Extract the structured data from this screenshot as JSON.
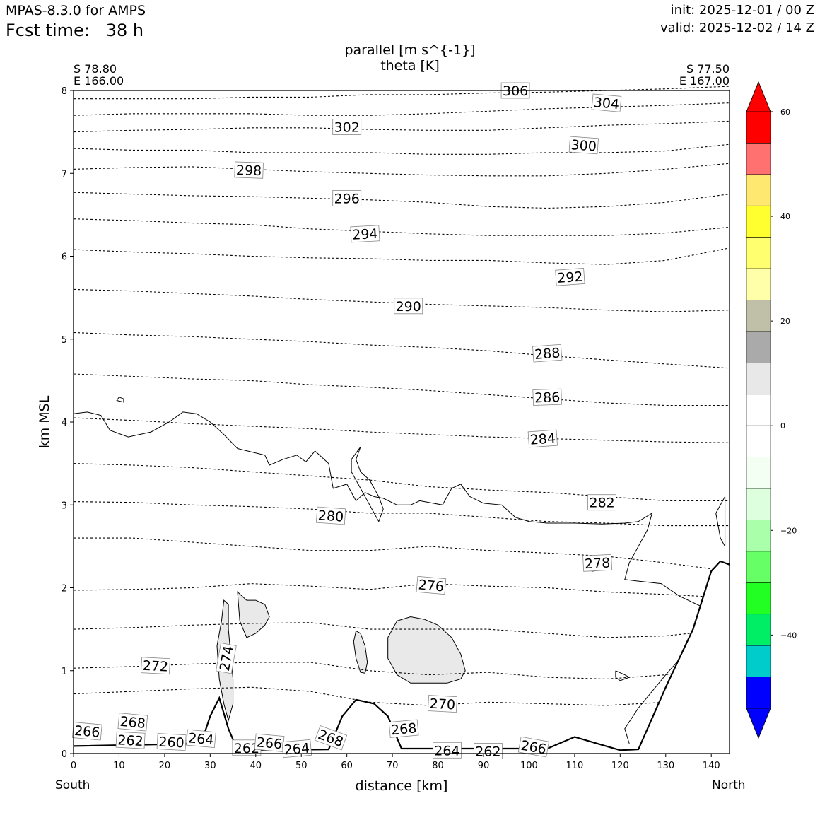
{
  "header": {
    "model": "MPAS-8.3.0 for AMPS",
    "fcst_label": "Fcst time:",
    "fcst_value": "38 h",
    "init": "init: 2025-12-01 / 00 Z",
    "valid": "valid: 2025-12-02 / 14 Z"
  },
  "endpoints": {
    "left_lat": "S 78.80",
    "left_lon": "E 166.00",
    "right_lat": "S 77.50",
    "right_lon": "E 167.00",
    "left_dir": "South",
    "right_dir": "North"
  },
  "chart_data": {
    "type": "cross-section",
    "title": "parallel [m s^{-1}]",
    "subtitle": "theta [K]",
    "xlabel": "distance [km]",
    "ylabel": "km MSL",
    "xlim": [
      0,
      144
    ],
    "ylim": [
      0,
      8
    ],
    "xticks": [
      0,
      10,
      20,
      30,
      40,
      50,
      60,
      70,
      80,
      90,
      100,
      110,
      120,
      130,
      140
    ],
    "yticks": [
      0,
      1,
      2,
      3,
      4,
      5,
      6,
      7,
      8
    ],
    "grid": false,
    "terrain": [
      [
        0,
        0.09
      ],
      [
        28,
        0.12
      ],
      [
        30,
        0.45
      ],
      [
        32,
        0.67
      ],
      [
        34,
        0.3
      ],
      [
        36,
        0.04
      ],
      [
        56,
        0.05
      ],
      [
        59,
        0.45
      ],
      [
        62,
        0.65
      ],
      [
        66,
        0.6
      ],
      [
        69,
        0.45
      ],
      [
        72,
        0.06
      ],
      [
        104,
        0.06
      ],
      [
        110,
        0.2
      ],
      [
        115,
        0.12
      ],
      [
        120,
        0.04
      ],
      [
        124,
        0.05
      ],
      [
        130,
        0.8
      ],
      [
        136,
        1.5
      ],
      [
        140,
        2.2
      ],
      [
        142,
        2.32
      ],
      [
        144,
        2.28
      ]
    ],
    "theta_contours": {
      "style": "dashed",
      "series": [
        {
          "level": 270,
          "y": [
            0.72,
            0.75,
            0.78,
            0.8,
            0.75,
            0.62,
            0.58,
            0.62,
            0.6,
            0.58,
            0.62,
            0.7
          ]
        },
        {
          "level": 272,
          "y": [
            1.03,
            1.05,
            1.08,
            1.1,
            1.1,
            1.0,
            0.95,
            0.98,
            0.92,
            0.9,
            0.95,
            1.1
          ]
        },
        {
          "level": 274,
          "y": [
            1.5,
            1.52,
            1.55,
            1.57,
            1.58,
            1.5,
            1.5,
            1.5,
            1.45,
            1.4,
            1.42,
            1.5
          ]
        },
        {
          "level": 276,
          "y": [
            1.97,
            1.98,
            2.0,
            2.05,
            2.02,
            1.98,
            2.05,
            2.02,
            2.0,
            1.95,
            1.92,
            1.88
          ]
        },
        {
          "level": 278,
          "y": [
            2.6,
            2.6,
            2.55,
            2.5,
            2.45,
            2.45,
            2.5,
            2.45,
            2.42,
            2.38,
            2.3,
            2.2
          ]
        },
        {
          "level": 280,
          "y": [
            3.04,
            3.03,
            3.0,
            2.98,
            2.95,
            2.9,
            2.9,
            2.85,
            2.8,
            2.78,
            2.75,
            2.75
          ]
        },
        {
          "level": 282,
          "y": [
            3.5,
            3.48,
            3.45,
            3.4,
            3.35,
            3.3,
            3.22,
            3.18,
            3.15,
            3.1,
            3.05,
            3.05
          ]
        },
        {
          "level": 284,
          "y": [
            4.05,
            4.02,
            3.98,
            3.95,
            3.92,
            3.88,
            3.85,
            3.82,
            3.8,
            3.78,
            3.76,
            3.75
          ]
        },
        {
          "level": 286,
          "y": [
            4.58,
            4.55,
            4.52,
            4.5,
            4.45,
            4.42,
            4.38,
            4.33,
            4.28,
            4.23,
            4.2,
            4.2
          ]
        },
        {
          "level": 288,
          "y": [
            5.08,
            5.05,
            5.03,
            5.0,
            4.97,
            4.93,
            4.9,
            4.86,
            4.8,
            4.75,
            4.7,
            4.65
          ]
        },
        {
          "level": 290,
          "y": [
            5.6,
            5.58,
            5.55,
            5.52,
            5.48,
            5.45,
            5.42,
            5.4,
            5.38,
            5.35,
            5.33,
            5.35
          ]
        },
        {
          "level": 292,
          "y": [
            6.08,
            6.05,
            6.03,
            6.0,
            5.98,
            5.97,
            5.95,
            5.95,
            5.92,
            5.9,
            5.95,
            6.1
          ]
        },
        {
          "level": 294,
          "y": [
            6.45,
            6.43,
            6.4,
            6.38,
            6.33,
            6.3,
            6.27,
            6.25,
            6.25,
            6.25,
            6.28,
            6.35
          ]
        },
        {
          "level": 296,
          "y": [
            6.77,
            6.75,
            6.73,
            6.72,
            6.7,
            6.68,
            6.65,
            6.6,
            6.58,
            6.6,
            6.65,
            6.75
          ]
        },
        {
          "level": 298,
          "y": [
            7.05,
            7.07,
            7.08,
            7.05,
            7.02,
            7.0,
            6.98,
            6.97,
            6.97,
            7.0,
            7.05,
            7.12
          ]
        },
        {
          "level": 300,
          "y": [
            7.3,
            7.28,
            7.28,
            7.25,
            7.25,
            7.25,
            7.23,
            7.23,
            7.25,
            7.25,
            7.27,
            7.35
          ]
        },
        {
          "level": 302,
          "y": [
            7.5,
            7.52,
            7.53,
            7.55,
            7.55,
            7.53,
            7.52,
            7.52,
            7.55,
            7.58,
            7.6,
            7.63
          ]
        },
        {
          "level": 304,
          "y": [
            7.7,
            7.72,
            7.72,
            7.72,
            7.7,
            7.7,
            7.72,
            7.75,
            7.78,
            7.8,
            7.82,
            7.85
          ]
        },
        {
          "level": 306,
          "y": [
            7.9,
            7.9,
            7.9,
            7.92,
            7.92,
            7.95,
            7.95,
            7.97,
            7.98,
            8.0,
            8.02,
            8.05
          ]
        }
      ],
      "x": [
        0,
        13,
        26,
        39,
        52,
        65,
        78,
        91,
        104,
        117,
        130,
        144
      ],
      "labels": [
        {
          "text": "266",
          "x": 3,
          "y": 0.27,
          "rot": -5
        },
        {
          "text": "268",
          "x": 13,
          "y": 0.38,
          "rot": -5
        },
        {
          "text": "262",
          "x": 12.5,
          "y": 0.16,
          "rot": -3
        },
        {
          "text": "260",
          "x": 21.5,
          "y": 0.14,
          "rot": -3
        },
        {
          "text": "264",
          "x": 28,
          "y": 0.18,
          "rot": -5
        },
        {
          "text": "272",
          "x": 18,
          "y": 1.06,
          "rot": -3
        },
        {
          "text": "274",
          "x": 33.5,
          "y": 1.15,
          "rot": 80
        },
        {
          "text": "262",
          "x": 38,
          "y": 0.07,
          "rot": 0
        },
        {
          "text": "266",
          "x": 43,
          "y": 0.13,
          "rot": -5
        },
        {
          "text": "264",
          "x": 49,
          "y": 0.06,
          "rot": 5
        },
        {
          "text": "268",
          "x": 56.5,
          "y": 0.19,
          "rot": -20
        },
        {
          "text": "268",
          "x": 72.5,
          "y": 0.3,
          "rot": 5
        },
        {
          "text": "270",
          "x": 81,
          "y": 0.6,
          "rot": -3
        },
        {
          "text": "264",
          "x": 82,
          "y": 0.04,
          "rot": 0
        },
        {
          "text": "262",
          "x": 91,
          "y": 0.03,
          "rot": 0
        },
        {
          "text": "266",
          "x": 101,
          "y": 0.08,
          "rot": -10
        },
        {
          "text": "276",
          "x": 78.5,
          "y": 2.03,
          "rot": -5
        },
        {
          "text": "278",
          "x": 115,
          "y": 2.3,
          "rot": 3
        },
        {
          "text": "280",
          "x": 56.5,
          "y": 2.87,
          "rot": -4
        },
        {
          "text": "282",
          "x": 116,
          "y": 3.03,
          "rot": 0
        },
        {
          "text": "284",
          "x": 103,
          "y": 3.8,
          "rot": 4
        },
        {
          "text": "286",
          "x": 104,
          "y": 4.3,
          "rot": 2
        },
        {
          "text": "288",
          "x": 104,
          "y": 4.83,
          "rot": 4
        },
        {
          "text": "290",
          "x": 73.5,
          "y": 5.4,
          "rot": 0
        },
        {
          "text": "292",
          "x": 109,
          "y": 5.75,
          "rot": 4
        },
        {
          "text": "294",
          "x": 64,
          "y": 6.27,
          "rot": 3
        },
        {
          "text": "296",
          "x": 60,
          "y": 6.7,
          "rot": 0
        },
        {
          "text": "298",
          "x": 38.5,
          "y": 7.04,
          "rot": -2
        },
        {
          "text": "300",
          "x": 112,
          "y": 7.34,
          "rot": -4
        },
        {
          "text": "302",
          "x": 60,
          "y": 7.56,
          "rot": 0
        },
        {
          "text": "304",
          "x": 117,
          "y": 7.85,
          "rot": -5
        },
        {
          "text": "306",
          "x": 97,
          "y": 8.0,
          "rot": 0
        }
      ]
    },
    "parallel_wind_zero_contour": {
      "style": "solid",
      "path": [
        [
          0,
          4.1
        ],
        [
          3,
          4.12
        ],
        [
          6,
          4.08
        ],
        [
          8,
          3.9
        ],
        [
          12,
          3.82
        ],
        [
          17,
          3.88
        ],
        [
          21,
          4.0
        ],
        [
          24,
          4.12
        ],
        [
          27,
          4.1
        ],
        [
          30,
          4.0
        ],
        [
          33,
          3.85
        ],
        [
          36,
          3.68
        ],
        [
          42,
          3.6
        ],
        [
          43,
          3.48
        ],
        [
          46,
          3.55
        ],
        [
          49,
          3.6
        ],
        [
          51,
          3.52
        ],
        [
          53,
          3.65
        ],
        [
          56,
          3.5
        ],
        [
          57,
          3.2
        ],
        [
          60,
          3.25
        ],
        [
          62,
          3.05
        ],
        [
          64,
          3.15
        ],
        [
          66,
          3.1
        ],
        [
          68,
          3.08
        ],
        [
          71,
          3.0
        ],
        [
          74,
          3.0
        ],
        [
          76,
          3.05
        ],
        [
          81,
          3.0
        ],
        [
          83,
          3.2
        ],
        [
          85,
          3.25
        ],
        [
          87,
          3.1
        ],
        [
          90,
          3.02
        ],
        [
          94,
          3.0
        ],
        [
          97,
          2.85
        ],
        [
          100,
          2.8
        ],
        [
          104,
          2.78
        ],
        [
          110,
          2.78
        ],
        [
          116,
          2.77
        ],
        [
          121,
          2.78
        ],
        [
          124,
          2.8
        ],
        [
          127,
          2.9
        ],
        [
          126,
          2.7
        ],
        [
          122,
          2.3
        ],
        [
          121,
          2.1
        ],
        [
          124,
          2.08
        ],
        [
          129,
          2.05
        ],
        [
          133,
          1.9
        ],
        [
          138,
          1.77
        ],
        [
          141,
          1.8
        ]
      ],
      "path2": [
        [
          63,
          3.7
        ],
        [
          62,
          3.55
        ],
        [
          63,
          3.4
        ],
        [
          65,
          3.3
        ],
        [
          67,
          3.1
        ],
        [
          68,
          2.95
        ],
        [
          67,
          2.8
        ],
        [
          66,
          2.9
        ],
        [
          65,
          3.0
        ],
        [
          64,
          3.1
        ],
        [
          63,
          3.2
        ],
        [
          61,
          3.4
        ],
        [
          61,
          3.55
        ],
        [
          63,
          3.7
        ]
      ],
      "path3": [
        [
          10,
          4.3
        ],
        [
          11,
          4.28
        ],
        [
          11,
          4.24
        ],
        [
          9.5,
          4.26
        ],
        [
          10,
          4.3
        ]
      ],
      "path4": [
        [
          112,
          2.22
        ],
        [
          113,
          2.25
        ],
        [
          115,
          2.25
        ],
        [
          116,
          2.22
        ],
        [
          114,
          2.2
        ],
        [
          112,
          2.22
        ]
      ],
      "path5": [
        [
          141,
          2.9
        ],
        [
          143,
          3.1
        ],
        [
          143,
          2.5
        ],
        [
          142,
          2.6
        ],
        [
          141,
          2.9
        ]
      ],
      "path6": [
        [
          119,
          1.0
        ],
        [
          121,
          0.95
        ],
        [
          122,
          0.92
        ],
        [
          120,
          0.88
        ],
        [
          119,
          0.92
        ],
        [
          119,
          1.0
        ]
      ],
      "path7": [
        [
          122,
          0.12
        ],
        [
          121,
          0.3
        ],
        [
          124,
          0.55
        ],
        [
          130,
          0.95
        ],
        [
          134,
          1.2
        ],
        [
          137,
          1.5
        ],
        [
          140,
          1.95
        ],
        [
          141,
          2.2
        ]
      ]
    },
    "shaded_regions": {
      "fill": "#e9e9e9",
      "shapes": [
        [
          [
            36,
            1.95
          ],
          [
            38,
            1.85
          ],
          [
            40,
            1.85
          ],
          [
            42,
            1.8
          ],
          [
            43,
            1.65
          ],
          [
            42,
            1.55
          ],
          [
            40,
            1.45
          ],
          [
            38,
            1.4
          ],
          [
            36.5,
            1.6
          ],
          [
            36,
            1.95
          ]
        ],
        [
          [
            33,
            1.85
          ],
          [
            34,
            1.8
          ],
          [
            34,
            1.5
          ],
          [
            34.5,
            1.2
          ],
          [
            35,
            0.9
          ],
          [
            35,
            0.6
          ],
          [
            34,
            0.4
          ],
          [
            33,
            0.6
          ],
          [
            32,
            0.9
          ],
          [
            31.5,
            1.3
          ],
          [
            32.5,
            1.6
          ],
          [
            33,
            1.85
          ]
        ],
        [
          [
            71,
            1.6
          ],
          [
            74,
            1.65
          ],
          [
            77,
            1.62
          ],
          [
            80,
            1.55
          ],
          [
            83,
            1.4
          ],
          [
            85,
            1.2
          ],
          [
            86,
            1.0
          ],
          [
            85,
            0.9
          ],
          [
            82,
            0.85
          ],
          [
            78,
            0.85
          ],
          [
            74,
            0.85
          ],
          [
            71,
            0.95
          ],
          [
            69,
            1.15
          ],
          [
            69,
            1.4
          ],
          [
            71,
            1.6
          ]
        ],
        [
          [
            62,
            1.48
          ],
          [
            63,
            1.45
          ],
          [
            64,
            1.3
          ],
          [
            64.5,
            1.1
          ],
          [
            64,
            0.97
          ],
          [
            63,
            0.98
          ],
          [
            62,
            1.15
          ],
          [
            61.5,
            1.35
          ],
          [
            62,
            1.48
          ]
        ]
      ]
    },
    "colorbar": {
      "ticks": [
        60,
        40,
        20,
        0,
        -20,
        -40
      ],
      "tick_labels": [
        "60",
        "40",
        "20",
        "0",
        "−20",
        "−40"
      ],
      "levels": [
        60,
        54,
        48,
        42,
        36,
        30,
        24,
        18,
        12,
        6,
        0,
        -6,
        -12,
        -18,
        -24,
        -30,
        -36,
        -42,
        -48,
        -54
      ],
      "colors": [
        "#ff0000",
        "#ff7070",
        "#ffe870",
        "#ffff30",
        "#ffff70",
        "#ffffaa",
        "#c0c0a8",
        "#aaaaaa",
        "#e8e8e8",
        "#ffffff",
        "#ffffff",
        "#f4fff4",
        "#ddffdd",
        "#aaffaa",
        "#66ff66",
        "#22ff22",
        "#00ee66",
        "#00cccc",
        "#0000ff"
      ],
      "over_color": "#ff0000",
      "under_color": "#0000ff"
    }
  }
}
